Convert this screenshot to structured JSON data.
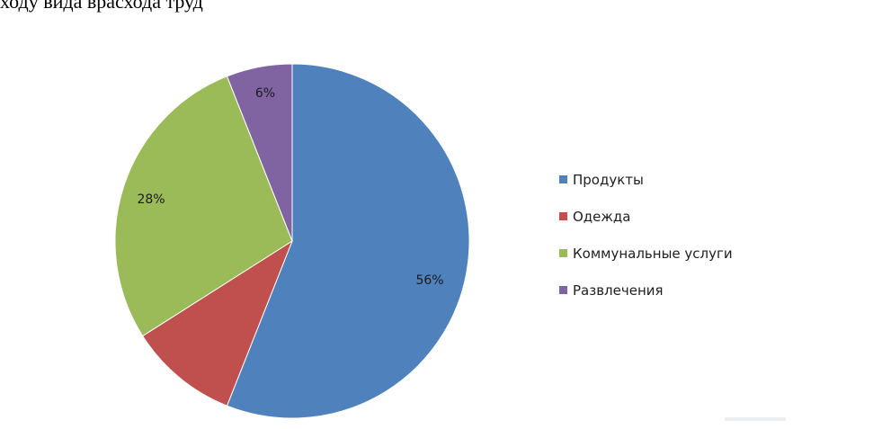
{
  "header": {
    "text": "ходу     вида      врасхода     труд"
  },
  "chart_data": {
    "type": "pie",
    "start_angle_deg": 0,
    "direction": "clockwise",
    "slices": [
      {
        "label": "Продукты",
        "value": 56,
        "data_label": "56%",
        "color": "#4f81bd"
      },
      {
        "label": "Одежда",
        "value": 10,
        "data_label": "",
        "color": "#c0504d"
      },
      {
        "label": "Коммунальные услуги",
        "value": 28,
        "data_label": "28%",
        "color": "#9bbb59"
      },
      {
        "label": "Развлечения",
        "value": 6,
        "data_label": "6%",
        "color": "#8064a2"
      }
    ],
    "legend_position": "right"
  }
}
